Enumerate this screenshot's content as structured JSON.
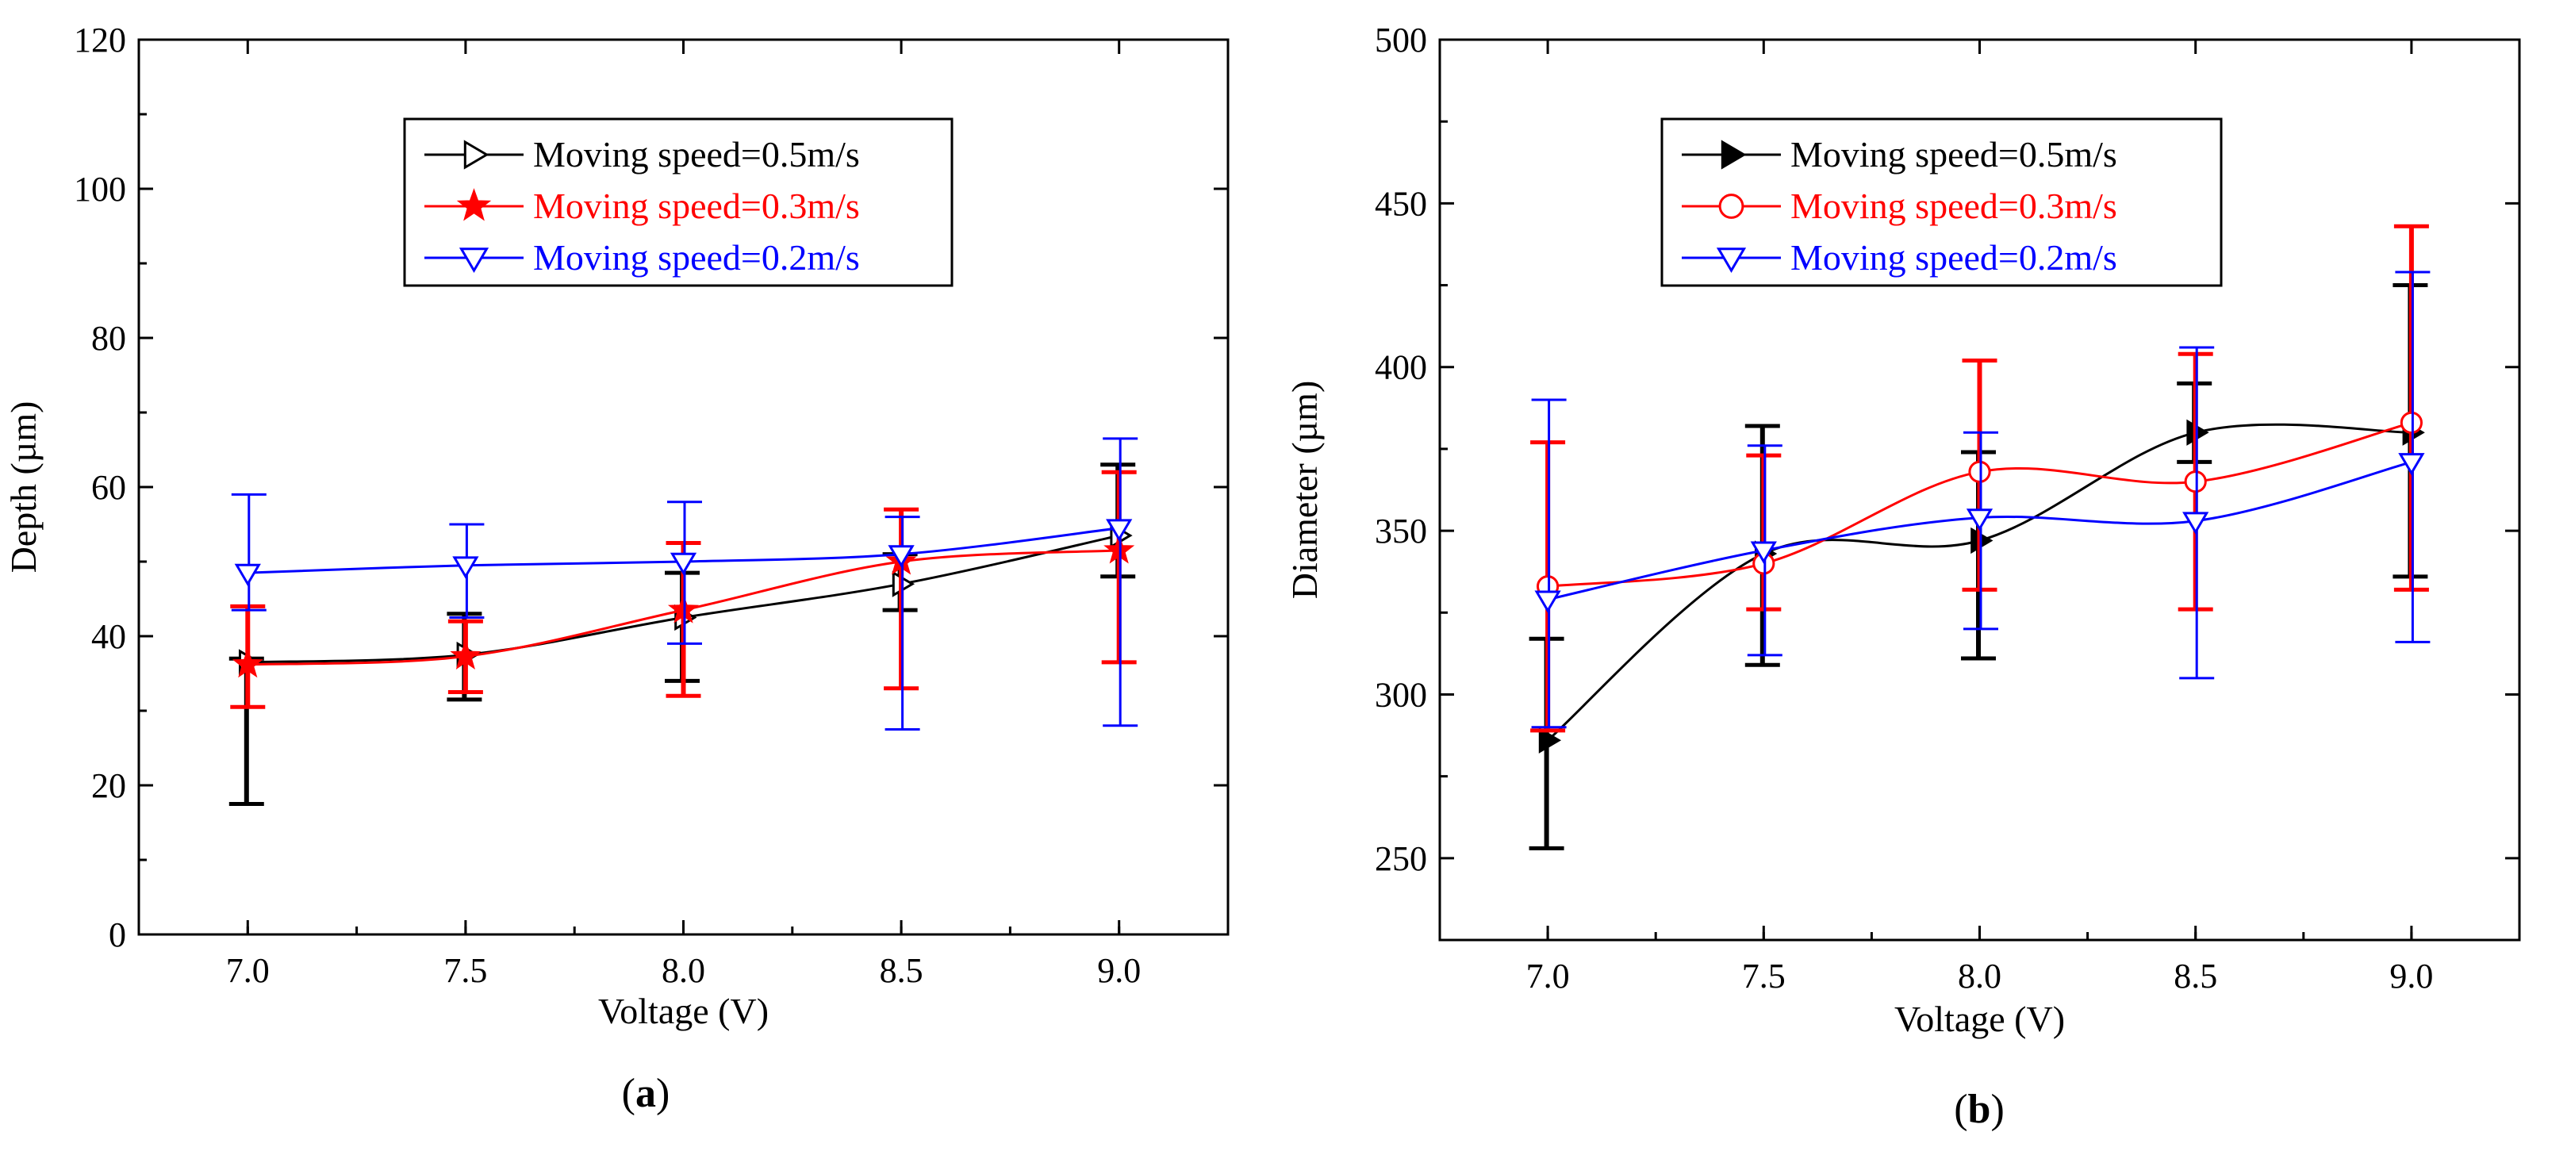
{
  "chart_data": [
    {
      "type": "line",
      "panel_label": "a",
      "xlabel": "Voltage (V)",
      "ylabel": "Depth (µm)",
      "xlim": [
        6.75,
        9.25
      ],
      "ylim": [
        0,
        120
      ],
      "x_ticks": [
        "7.0",
        "7.5",
        "8.0",
        "8.5",
        "9.0"
      ],
      "y_ticks": [
        "0",
        "20",
        "40",
        "60",
        "80",
        "100",
        "120"
      ],
      "legend_position": "top-center",
      "x": [
        7.0,
        7.5,
        8.0,
        8.5,
        9.0
      ],
      "series": [
        {
          "name": "Moving speed=0.5m/s",
          "color": "#000000",
          "marker": "triangle-right-open",
          "values": [
            36.5,
            37.5,
            42.5,
            47.0,
            53.5
          ],
          "err_low": [
            17.5,
            31.5,
            34.0,
            43.5,
            48.0
          ],
          "err_high": [
            37.0,
            43.0,
            48.5,
            51.0,
            63.0
          ]
        },
        {
          "name": "Moving speed=0.3m/s",
          "color": "#ff0000",
          "marker": "star-filled",
          "values": [
            36.2,
            37.3,
            43.5,
            50.0,
            51.5
          ],
          "err_low": [
            30.5,
            32.5,
            32.0,
            33.0,
            36.5
          ],
          "err_high": [
            44.0,
            42.0,
            52.5,
            57.0,
            62.0
          ]
        },
        {
          "name": "Moving speed=0.2m/s",
          "color": "#0000ff",
          "marker": "triangle-down-open",
          "values": [
            48.5,
            49.5,
            50.0,
            51.0,
            54.5
          ],
          "err_low": [
            43.5,
            42.5,
            39.0,
            27.5,
            28.0
          ],
          "err_high": [
            59.0,
            55.0,
            58.0,
            56.0,
            66.5
          ]
        }
      ]
    },
    {
      "type": "line",
      "panel_label": "b",
      "xlabel": "Voltage (V)",
      "ylabel": "Diameter (µm)",
      "xlim": [
        6.75,
        9.25
      ],
      "ylim": [
        225,
        500
      ],
      "x_ticks": [
        "7.0",
        "7.5",
        "8.0",
        "8.5",
        "9.0"
      ],
      "y_ticks": [
        "250",
        "300",
        "350",
        "400",
        "450",
        "500"
      ],
      "legend_position": "top-center",
      "x": [
        7.0,
        7.5,
        8.0,
        8.5,
        9.0
      ],
      "series": [
        {
          "name": "Moving speed=0.5m/s",
          "color": "#000000",
          "marker": "triangle-right-filled",
          "values": [
            286,
            343,
            347,
            380,
            380
          ],
          "err_low": [
            253,
            309,
            311,
            371,
            336
          ],
          "err_high": [
            317,
            382,
            374,
            395,
            425
          ]
        },
        {
          "name": "Moving speed=0.3m/s",
          "color": "#ff0000",
          "marker": "circle-open",
          "values": [
            333,
            340,
            368,
            365,
            383
          ],
          "err_low": [
            289,
            326,
            332,
            326,
            332
          ],
          "err_high": [
            377,
            373,
            402,
            404,
            443
          ]
        },
        {
          "name": "Moving speed=0.2m/s",
          "color": "#0000ff",
          "marker": "triangle-down-open",
          "values": [
            329,
            344,
            354,
            353,
            371
          ],
          "err_low": [
            290,
            312,
            320,
            305,
            316
          ],
          "err_high": [
            390,
            376,
            380,
            406,
            429
          ]
        }
      ]
    }
  ]
}
